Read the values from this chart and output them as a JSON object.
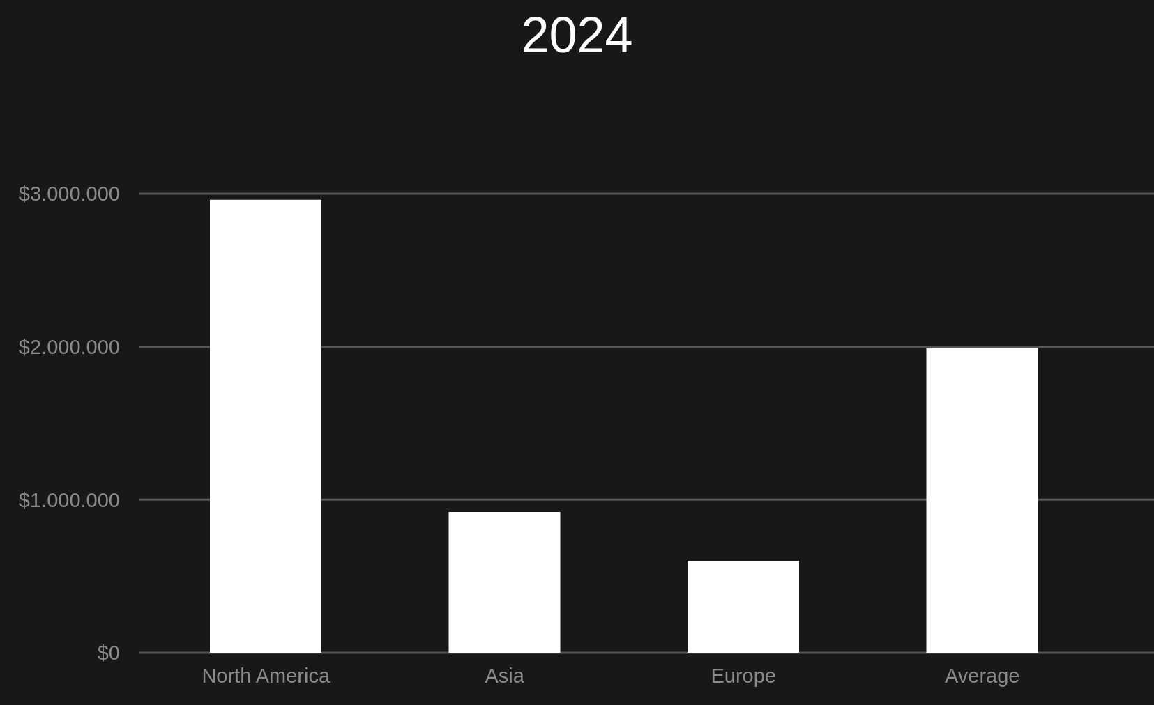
{
  "chart_data": {
    "type": "bar",
    "title": "2024",
    "categories": [
      "North America",
      "Asia",
      "Europe",
      "Average"
    ],
    "values": [
      2960000,
      920000,
      600000,
      1990000
    ],
    "color": "#ffffff",
    "ylim": [
      0,
      3000000
    ],
    "yticks": [
      {
        "value": 0,
        "label": "$0"
      },
      {
        "value": 1000000,
        "label": "$1.000.000"
      },
      {
        "value": 2000000,
        "label": "$2.000.000"
      },
      {
        "value": 3000000,
        "label": "$3.000.000"
      }
    ],
    "grid": "y"
  }
}
